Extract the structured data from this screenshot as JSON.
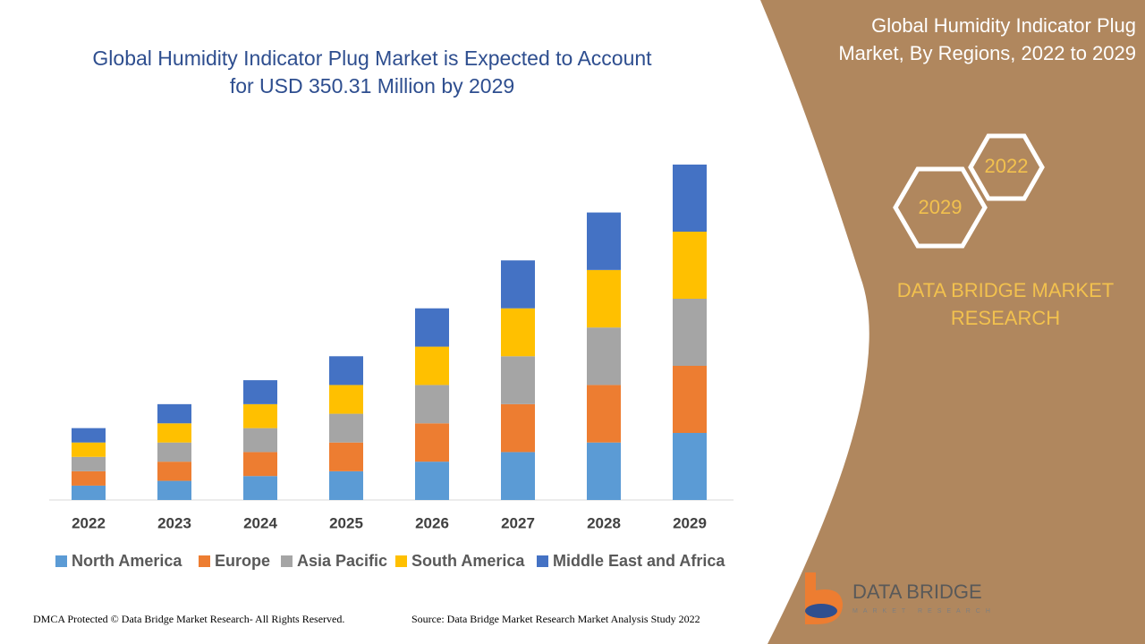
{
  "chart_data": {
    "type": "stacked-bar",
    "title": [
      "Global Humidity Indicator Plug Market is Expected to Account",
      "for USD 350.31 Million by 2029"
    ],
    "categories": [
      "2022",
      "2023",
      "2024",
      "2025",
      "2026",
      "2027",
      "2028",
      "2029"
    ],
    "series": [
      {
        "name": "North America",
        "color": "#5b9bd5",
        "values": [
          15,
          20,
          25,
          30,
          40,
          50,
          60,
          70
        ]
      },
      {
        "name": "Europe",
        "color": "#ed7d31",
        "values": [
          15,
          20,
          25,
          30,
          40,
          50,
          60,
          70
        ]
      },
      {
        "name": "Asia Pacific",
        "color": "#a5a5a5",
        "values": [
          15,
          20,
          25,
          30,
          40,
          50,
          60,
          70
        ]
      },
      {
        "name": "South America",
        "color": "#ffc000",
        "values": [
          15,
          20,
          25,
          30,
          40,
          50,
          60,
          70
        ]
      },
      {
        "name": "Middle East and Africa",
        "color": "#4472c4",
        "values": [
          15,
          20,
          25,
          30,
          40,
          50,
          60,
          70
        ]
      }
    ],
    "legend": "bottom"
  },
  "panel": {
    "title": [
      "Global Humidity Indicator Plug",
      "Market, By Regions, 2022 to 2029"
    ],
    "hexagons": [
      "2022",
      "2029"
    ],
    "brand": [
      "DATA BRIDGE MARKET",
      "RESEARCH"
    ]
  },
  "logo": {
    "name": "DATA BRIDGE",
    "tagline": "MARKET RESEARCH"
  },
  "footer": {
    "left": "DMCA Protected © Data Bridge Market Research- All Rights Reserved.",
    "right": "Source: Data Bridge Market Research Market Analysis Study 2022"
  }
}
